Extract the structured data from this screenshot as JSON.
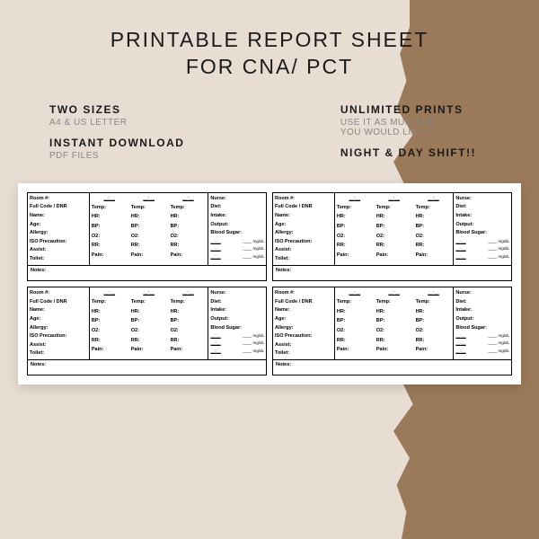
{
  "title_line1": "PRINTABLE REPORT SHEET",
  "title_line2": "FOR CNA/ PCT",
  "features": {
    "left": [
      {
        "title": "TWO SIZES",
        "sub": "A4 & US LETTER"
      },
      {
        "title": "INSTANT DOWNLOAD",
        "sub": "PDF FILES"
      }
    ],
    "right": [
      {
        "title": "UNLIMITED PRINTS",
        "sub": "USE IT AS MUCH AS\nYOU WOULD LIKE!!"
      },
      {
        "title": "NIGHT & DAY SHIFT!!",
        "sub": ""
      }
    ]
  },
  "card": {
    "col1": [
      "Room #:",
      "Full Code / DNR",
      "Name:",
      "Age:",
      "Allergy:",
      "ISO Precaution:",
      "Assist:",
      "Toilet:"
    ],
    "vitals_time": "__:__",
    "vitals": [
      "Temp:",
      "HR:",
      "BP:",
      "O2:",
      "RR:",
      "Pain:"
    ],
    "col3": [
      "Nurse:",
      "Diet:",
      "Intake:",
      "Output:",
      "Blood Sugar:"
    ],
    "bs_unit": "mg/dL",
    "notes": "Notes:"
  },
  "colors": {
    "background": "#e8ddd2",
    "torn": "#9b7a5a",
    "text": "#1a1a1a",
    "subtext": "#888888",
    "sheet": "#ffffff",
    "border": "#000000"
  }
}
